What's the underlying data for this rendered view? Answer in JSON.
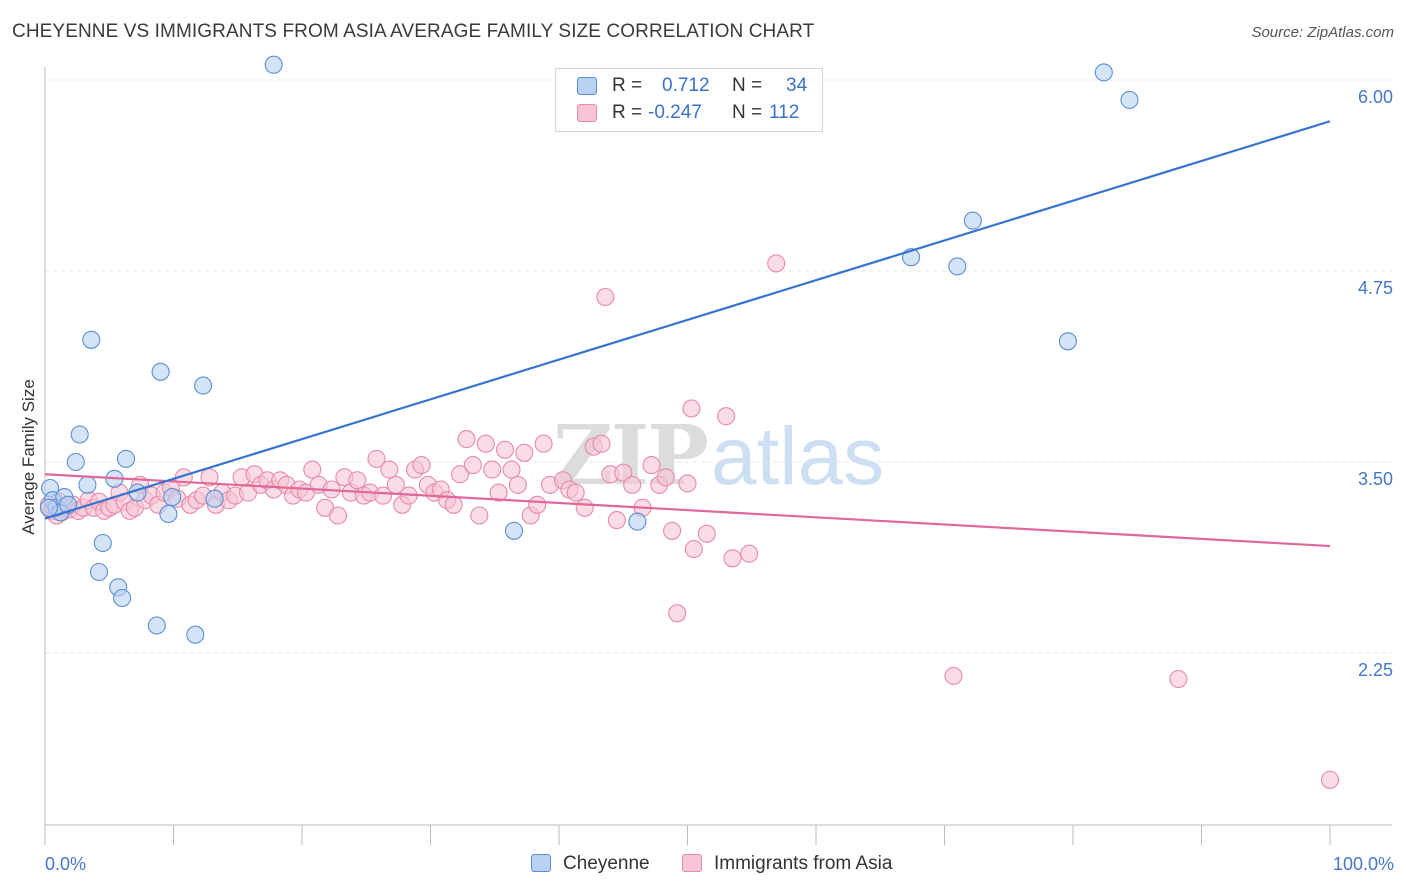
{
  "title": "CHEYENNE VS IMMIGRANTS FROM ASIA AVERAGE FAMILY SIZE CORRELATION CHART",
  "source": "Source: ZipAtlas.com",
  "watermark": {
    "zip": "ZIP",
    "atlas": "atlas"
  },
  "legend": {
    "rows": [
      {
        "r_label": "R =",
        "r_value": "0.712",
        "n_label": "N =",
        "n_value": "34"
      },
      {
        "r_label": "R =",
        "r_value": "-0.247",
        "n_label": "N =",
        "n_value": "112"
      }
    ]
  },
  "bottom_legend": [
    "Cheyenne",
    "Immigrants from Asia"
  ],
  "colors": {
    "blue_fill": "#b9d1f2",
    "blue_stroke": "#5a8fd8",
    "blue_line": "#3674d0",
    "pink_fill": "#f7c5d5",
    "pink_stroke": "#e88aa8",
    "pink_line": "#e0679a",
    "tick_text": "#4477cc",
    "grid": "#e4e4e4"
  },
  "chart_data": {
    "type": "scatter",
    "title": "CHEYENNE VS IMMIGRANTS FROM ASIA AVERAGE FAMILY SIZE CORRELATION CHART",
    "xlabel": "",
    "ylabel": "Average Family Size",
    "xlim": [
      0,
      100
    ],
    "ylim": [
      1.2,
      6.1
    ],
    "x_tick_labels": [
      "0.0%",
      "100.0%"
    ],
    "y_ticks": [
      2.25,
      3.5,
      4.75,
      6.0
    ],
    "y_tick_labels": [
      "2.25",
      "3.50",
      "4.75",
      "6.00"
    ],
    "grid": true,
    "legend_position": "top-center",
    "series": [
      {
        "name": "Cheyenne",
        "r": 0.712,
        "n": 34,
        "trend": [
          [
            0,
            3.13
          ],
          [
            100,
            5.73
          ]
        ],
        "points": [
          [
            0.4,
            3.33
          ],
          [
            0.6,
            3.25
          ],
          [
            0.9,
            3.2
          ],
          [
            1.2,
            3.17
          ],
          [
            1.5,
            3.27
          ],
          [
            1.8,
            3.22
          ],
          [
            2.4,
            3.5
          ],
          [
            2.7,
            3.68
          ],
          [
            3.3,
            3.35
          ],
          [
            3.6,
            4.3
          ],
          [
            4.2,
            2.78
          ],
          [
            4.5,
            2.97
          ],
          [
            5.4,
            3.39
          ],
          [
            5.7,
            2.68
          ],
          [
            6.0,
            2.61
          ],
          [
            6.3,
            3.52
          ],
          [
            7.2,
            3.3
          ],
          [
            8.7,
            2.43
          ],
          [
            9.0,
            4.09
          ],
          [
            9.6,
            3.16
          ],
          [
            9.9,
            3.27
          ],
          [
            11.7,
            2.37
          ],
          [
            12.3,
            4.0
          ],
          [
            13.2,
            3.26
          ],
          [
            17.8,
            6.1
          ],
          [
            36.5,
            3.05
          ],
          [
            46.1,
            3.11
          ],
          [
            67.4,
            4.84
          ],
          [
            71.0,
            4.78
          ],
          [
            72.2,
            5.08
          ],
          [
            79.6,
            4.29
          ],
          [
            82.4,
            6.05
          ],
          [
            84.4,
            5.87
          ],
          [
            0.3,
            3.2
          ]
        ]
      },
      {
        "name": "Immigrants from Asia",
        "r": -0.247,
        "n": 112,
        "trend": [
          [
            0,
            3.42
          ],
          [
            100,
            2.95
          ]
        ],
        "points": [
          [
            0.3,
            3.22
          ],
          [
            0.5,
            3.18
          ],
          [
            0.7,
            3.2
          ],
          [
            0.9,
            3.15
          ],
          [
            1.1,
            3.24
          ],
          [
            1.3,
            3.17
          ],
          [
            1.6,
            3.21
          ],
          [
            1.9,
            3.19
          ],
          [
            2.2,
            3.22
          ],
          [
            2.6,
            3.18
          ],
          [
            3.0,
            3.2
          ],
          [
            3.4,
            3.25
          ],
          [
            3.8,
            3.2
          ],
          [
            4.2,
            3.24
          ],
          [
            4.6,
            3.18
          ],
          [
            5.0,
            3.2
          ],
          [
            5.4,
            3.22
          ],
          [
            5.8,
            3.3
          ],
          [
            6.2,
            3.24
          ],
          [
            6.6,
            3.18
          ],
          [
            7.0,
            3.2
          ],
          [
            7.4,
            3.35
          ],
          [
            7.8,
            3.25
          ],
          [
            8.3,
            3.28
          ],
          [
            8.8,
            3.22
          ],
          [
            9.3,
            3.3
          ],
          [
            9.8,
            3.33
          ],
          [
            10.3,
            3.26
          ],
          [
            10.8,
            3.4
          ],
          [
            11.3,
            3.22
          ],
          [
            11.8,
            3.25
          ],
          [
            12.3,
            3.28
          ],
          [
            12.8,
            3.4
          ],
          [
            13.3,
            3.22
          ],
          [
            13.8,
            3.3
          ],
          [
            14.3,
            3.25
          ],
          [
            14.8,
            3.28
          ],
          [
            15.3,
            3.4
          ],
          [
            15.8,
            3.3
          ],
          [
            16.3,
            3.42
          ],
          [
            16.8,
            3.35
          ],
          [
            17.3,
            3.38
          ],
          [
            17.8,
            3.32
          ],
          [
            18.3,
            3.38
          ],
          [
            18.8,
            3.35
          ],
          [
            19.3,
            3.28
          ],
          [
            19.8,
            3.32
          ],
          [
            20.3,
            3.3
          ],
          [
            20.8,
            3.45
          ],
          [
            21.3,
            3.35
          ],
          [
            21.8,
            3.2
          ],
          [
            22.3,
            3.32
          ],
          [
            22.8,
            3.15
          ],
          [
            23.3,
            3.4
          ],
          [
            23.8,
            3.3
          ],
          [
            24.3,
            3.38
          ],
          [
            24.8,
            3.28
          ],
          [
            25.3,
            3.3
          ],
          [
            25.8,
            3.52
          ],
          [
            26.3,
            3.28
          ],
          [
            26.8,
            3.45
          ],
          [
            27.3,
            3.35
          ],
          [
            27.8,
            3.22
          ],
          [
            28.3,
            3.28
          ],
          [
            28.8,
            3.45
          ],
          [
            29.3,
            3.48
          ],
          [
            29.8,
            3.35
          ],
          [
            30.3,
            3.3
          ],
          [
            30.8,
            3.32
          ],
          [
            31.3,
            3.25
          ],
          [
            31.8,
            3.22
          ],
          [
            32.3,
            3.42
          ],
          [
            32.8,
            3.65
          ],
          [
            33.3,
            3.48
          ],
          [
            33.8,
            3.15
          ],
          [
            34.3,
            3.62
          ],
          [
            34.8,
            3.45
          ],
          [
            35.3,
            3.3
          ],
          [
            35.8,
            3.58
          ],
          [
            36.3,
            3.45
          ],
          [
            36.8,
            3.35
          ],
          [
            37.3,
            3.56
          ],
          [
            37.8,
            3.15
          ],
          [
            38.3,
            3.22
          ],
          [
            38.8,
            3.62
          ],
          [
            39.3,
            3.35
          ],
          [
            40.3,
            3.38
          ],
          [
            40.8,
            3.32
          ],
          [
            41.3,
            3.3
          ],
          [
            42.0,
            3.2
          ],
          [
            42.7,
            3.6
          ],
          [
            43.3,
            3.62
          ],
          [
            44.0,
            3.42
          ],
          [
            44.5,
            3.12
          ],
          [
            45.0,
            3.43
          ],
          [
            45.7,
            3.35
          ],
          [
            46.5,
            3.2
          ],
          [
            47.2,
            3.48
          ],
          [
            47.8,
            3.35
          ],
          [
            48.3,
            3.4
          ],
          [
            48.8,
            3.05
          ],
          [
            50.0,
            3.36
          ],
          [
            43.6,
            4.58
          ],
          [
            50.3,
            3.85
          ],
          [
            53.0,
            3.8
          ],
          [
            50.5,
            2.93
          ],
          [
            51.5,
            3.03
          ],
          [
            53.5,
            2.87
          ],
          [
            54.8,
            2.9
          ],
          [
            49.2,
            2.51
          ],
          [
            56.9,
            4.8
          ],
          [
            70.7,
            2.1
          ],
          [
            88.2,
            2.08
          ],
          [
            100.0,
            1.42
          ]
        ]
      }
    ]
  }
}
